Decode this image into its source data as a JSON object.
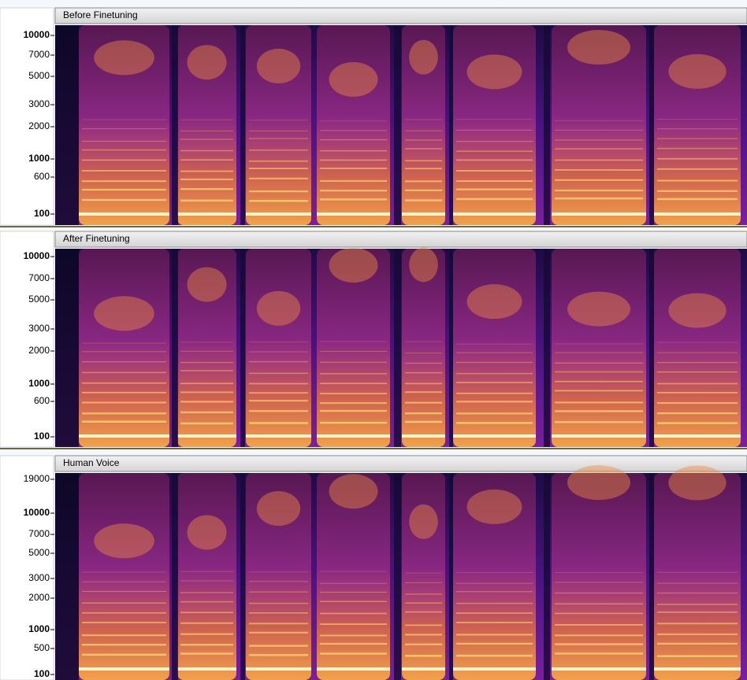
{
  "panels": [
    {
      "title": "Before Finetuning",
      "yticks": [
        10000,
        7000,
        5000,
        3000,
        2000,
        1000,
        600,
        100
      ]
    },
    {
      "title": "After Finetuning",
      "yticks": [
        10000,
        7000,
        5000,
        3000,
        2000,
        1000,
        600,
        100
      ]
    },
    {
      "title": "Human Voice",
      "yticks": [
        19000,
        10000,
        7000,
        5000,
        3000,
        2000,
        1000,
        500,
        100
      ]
    }
  ]
}
